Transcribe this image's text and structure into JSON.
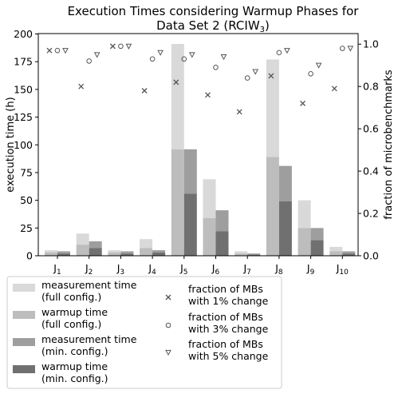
{
  "chart_data": {
    "type": "bar",
    "title": [
      "Execution Times considering Warmup Phases for",
      "Data Set 2 (RCIW",
      "3",
      ")"
    ],
    "ylabel": "execution time (h)",
    "y2label": "fraction of microbenchmarks",
    "ylim": [
      0,
      200
    ],
    "y2lim": [
      0,
      1.05
    ],
    "yticks": [
      "0",
      "25",
      "50",
      "75",
      "100",
      "125",
      "150",
      "175",
      "200"
    ],
    "y2ticks": [
      "0.0",
      "0.2",
      "0.4",
      "0.6",
      "0.8",
      "1.0"
    ],
    "categories": [
      {
        "base": "J",
        "sub": "1"
      },
      {
        "base": "J",
        "sub": "2"
      },
      {
        "base": "J",
        "sub": "3"
      },
      {
        "base": "J",
        "sub": "4"
      },
      {
        "base": "J",
        "sub": "5"
      },
      {
        "base": "J",
        "sub": "6"
      },
      {
        "base": "J",
        "sub": "7"
      },
      {
        "base": "J",
        "sub": "8"
      },
      {
        "base": "J",
        "sub": "9"
      },
      {
        "base": "J",
        "sub": "10"
      }
    ],
    "full_config": {
      "measurement_total": [
        5,
        20,
        5,
        15,
        191,
        69,
        4,
        177,
        50,
        8
      ],
      "warmup": [
        3,
        10,
        3,
        7,
        96,
        34,
        2,
        89,
        25,
        4
      ]
    },
    "min_config": {
      "measurement_total": [
        4,
        13,
        4,
        5,
        96,
        41,
        2,
        81,
        25,
        4
      ],
      "warmup": [
        2,
        7,
        2,
        3,
        56,
        22,
        1,
        49,
        14,
        2
      ]
    },
    "fraction_series": [
      {
        "key": "p1",
        "marker": "x",
        "values": [
          0.97,
          0.8,
          0.99,
          0.78,
          0.82,
          0.76,
          0.68,
          0.85,
          0.72,
          0.79
        ]
      },
      {
        "key": "p3",
        "marker": "o",
        "values": [
          0.97,
          0.92,
          0.99,
          0.93,
          0.93,
          0.89,
          0.84,
          0.96,
          0.86,
          0.98
        ]
      },
      {
        "key": "p5",
        "marker": "v",
        "values": [
          0.97,
          0.95,
          0.99,
          0.96,
          0.95,
          0.94,
          0.87,
          0.97,
          0.9,
          0.98
        ]
      }
    ],
    "colors": {
      "full_measurement": "#d9d9d9",
      "full_warmup": "#bdbdbd",
      "min_measurement": "#9e9e9e",
      "min_warmup": "#707070",
      "marker": "#555555"
    },
    "legend": {
      "left": [
        {
          "key": "full_measurement",
          "lines": [
            "measurement time",
            "(full config.)"
          ]
        },
        {
          "key": "full_warmup",
          "lines": [
            "warmup time",
            "(full config.)"
          ]
        },
        {
          "key": "min_measurement",
          "lines": [
            "measurement time",
            "(min. config.)"
          ]
        },
        {
          "key": "min_warmup",
          "lines": [
            "warmup time",
            "(min. config.)"
          ]
        }
      ],
      "right": [
        {
          "key": "p1",
          "marker": "x",
          "lines": [
            "fraction of MBs",
            "with 1% change"
          ]
        },
        {
          "key": "p3",
          "marker": "o",
          "lines": [
            "fraction of MBs",
            "with 3% change"
          ]
        },
        {
          "key": "p5",
          "marker": "v",
          "lines": [
            "fraction of MBs",
            "with 5% change"
          ]
        }
      ]
    }
  }
}
